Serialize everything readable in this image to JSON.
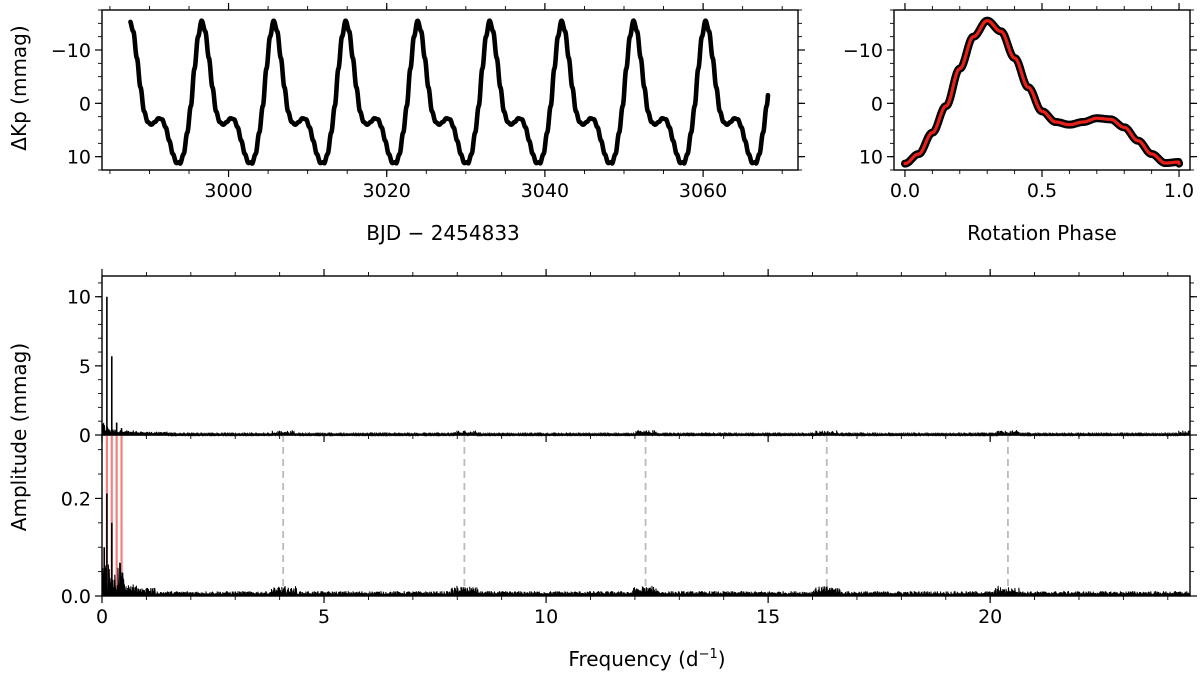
{
  "chart_data": [
    {
      "id": "light-curve",
      "type": "scatter",
      "xlabel": "BJD − 2454833",
      "ylabel": "ΔKp (mmag)",
      "xlim": [
        2984,
        3072
      ],
      "ylim": [
        12.5,
        -17.5
      ],
      "y_inverted": true,
      "xticks": [
        3000,
        3020,
        3040,
        3060
      ],
      "xtick_labels": [
        "3000",
        "3020",
        "3040",
        "3060"
      ],
      "yticks": [
        -10,
        0,
        10
      ],
      "ytick_labels": [
        "−10",
        "0",
        "10"
      ],
      "series": [
        {
          "x_range": [
            2987.6,
            3068.2
          ],
          "period_days": 9.1,
          "first_peak_x": 2996.6,
          "peak_y": -15.5,
          "secondary_max_y": 3,
          "min_y": 11.5,
          "color": "#000000"
        }
      ]
    },
    {
      "id": "phase-curve",
      "type": "scatter",
      "xlabel": "Rotation Phase",
      "ylabel": "",
      "xlim": [
        -0.04,
        1.04
      ],
      "ylim": [
        12.5,
        -17.5
      ],
      "y_inverted": true,
      "xticks": [
        0.0,
        0.5,
        1.0
      ],
      "xtick_labels": [
        "0.0",
        "0.5",
        "1.0"
      ],
      "yticks": [
        -10,
        0,
        10
      ],
      "ytick_labels": [
        "−10",
        "0",
        "10"
      ],
      "series": [
        {
          "phase": [
            0.0,
            0.05,
            0.1,
            0.15,
            0.2,
            0.25,
            0.3,
            0.35,
            0.4,
            0.45,
            0.5,
            0.55,
            0.6,
            0.65,
            0.7,
            0.75,
            0.8,
            0.85,
            0.9,
            0.95,
            1.0
          ],
          "dmag": [
            11.3,
            9.5,
            5.5,
            0.5,
            -6.5,
            -12.5,
            -15.5,
            -13.5,
            -8.5,
            -3.0,
            1.5,
            3.5,
            4.0,
            3.5,
            2.8,
            3.0,
            4.5,
            7.0,
            9.5,
            11.2,
            11.0
          ],
          "color": "#000000",
          "fit_color": "#e8201a"
        }
      ]
    },
    {
      "id": "amplitude-spectrum",
      "type": "line",
      "xlabel": "",
      "ylabel": "Amplitude (mmag)",
      "xlim": [
        0,
        24.5
      ],
      "ylim": [
        0,
        11.5
      ],
      "yticks": [
        0,
        5,
        10
      ],
      "ytick_labels": [
        "0",
        "5",
        "10"
      ],
      "series": [
        {
          "peaks": [
            {
              "x": 0.11,
              "y": 10.0
            },
            {
              "x": 0.22,
              "y": 5.7
            },
            {
              "x": 0.33,
              "y": 0.9
            },
            {
              "x": 0.44,
              "y": 0.5
            }
          ],
          "harmonic_clusters": [
            4.08,
            8.16,
            12.24,
            16.32,
            20.4,
            24.48
          ],
          "color": "#000000"
        }
      ]
    },
    {
      "id": "residual-spectrum",
      "type": "line",
      "xlabel": "Frequency (d⁻¹)",
      "ylabel": "",
      "xlim": [
        0,
        24.5
      ],
      "ylim": [
        0,
        0.33
      ],
      "xticks": [
        0,
        5,
        10,
        15,
        20
      ],
      "xtick_labels": [
        "0",
        "5",
        "10",
        "15",
        "20"
      ],
      "yticks": [
        0.0,
        0.2
      ],
      "ytick_labels": [
        "0.0",
        "0.2"
      ],
      "series": [
        {
          "peaks": [
            {
              "x": 0.11,
              "y": 0.21
            },
            {
              "x": 0.22,
              "y": 0.15
            },
            {
              "x": 0.05,
              "y": 0.1
            }
          ],
          "prewhitened_lines": [
            0.11,
            0.22,
            0.33,
            0.44
          ],
          "prewhitened_color": "#f08080",
          "harmonic_markers": [
            4.08,
            8.16,
            12.24,
            16.32,
            20.4
          ],
          "marker_color": "#bbbbbb",
          "color": "#000000"
        }
      ]
    }
  ],
  "labels": {
    "lc_x": "BJD − 2454833",
    "lc_y": "ΔKp (mmag)",
    "phase_x": "Rotation Phase",
    "spec_y": "Amplitude (mmag)",
    "freq_x_main": "Frequency (d",
    "freq_x_sup": "−1",
    "freq_x_close": ")"
  }
}
